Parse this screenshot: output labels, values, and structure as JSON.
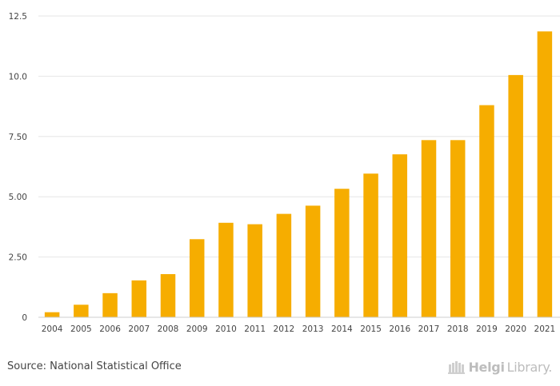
{
  "chart_data": {
    "type": "bar",
    "title": "",
    "xlabel": "",
    "ylabel": "",
    "categories": [
      "2004",
      "2005",
      "2006",
      "2007",
      "2008",
      "2009",
      "2010",
      "2011",
      "2012",
      "2013",
      "2014",
      "2015",
      "2016",
      "2017",
      "2018",
      "2019",
      "2020",
      "2021"
    ],
    "values": [
      0.21,
      0.52,
      1.0,
      1.53,
      1.79,
      3.24,
      3.92,
      3.86,
      4.29,
      4.63,
      5.33,
      5.96,
      6.76,
      7.35,
      7.35,
      8.8,
      10.05,
      11.86
    ],
    "ylim": [
      0,
      12.5
    ],
    "yticks": [
      "0",
      "2.50",
      "5.00",
      "7.50",
      "10.0",
      "12.5"
    ],
    "ytick_values": [
      0,
      2.5,
      5.0,
      7.5,
      10.0,
      12.5
    ],
    "grid": true,
    "bar_color": "#f6ad00"
  },
  "footer": {
    "source": "Source: National Statistical Office",
    "brand_bold": "Helgi",
    "brand_light": "Library."
  }
}
